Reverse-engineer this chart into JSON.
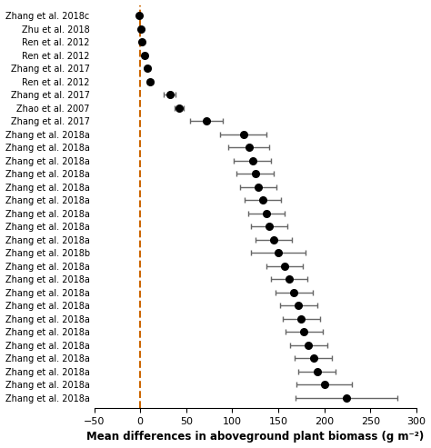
{
  "labels": [
    "Zhang et al. 2018c",
    "Zhu et al. 2018",
    "Ren et al. 2012",
    "Ren et al. 2012",
    "Zhang et al. 2017",
    "Ren et al. 2012",
    "Zhang et al. 2017",
    "Zhao et al. 2007",
    "Zhang et al. 2017",
    "Zhang et al. 2018a",
    "Zhang et al. 2018a",
    "Zhang et al. 2018a",
    "Zhang et al. 2018a",
    "Zhang et al. 2018a",
    "Zhang et al. 2018a",
    "Zhang et al. 2018a",
    "Zhang et al. 2018a",
    "Zhang et al. 2018a",
    "Zhang et al. 2018b",
    "Zhang et al. 2018a",
    "Zhang et al. 2018a",
    "Zhang et al. 2018a",
    "Zhang et al. 2018a",
    "Zhang et al. 2018a",
    "Zhang et al. 2018a",
    "Zhang et al. 2018a",
    "Zhang et al. 2018a",
    "Zhang et al. 2018a",
    "Zhang et al. 2018a",
    "Zhang et al. 2018a"
  ],
  "means": [
    -1.0,
    0.5,
    1.5,
    5.0,
    8.0,
    11.0,
    32.0,
    42.0,
    72.0,
    112.0,
    118.0,
    122.0,
    125.0,
    128.0,
    133.0,
    137.0,
    140.0,
    145.0,
    150.0,
    157.0,
    162.0,
    167.0,
    172.0,
    175.0,
    178.0,
    183.0,
    188.0,
    192.0,
    200.0,
    224.0
  ],
  "xerr_left": [
    1.0,
    1.0,
    1.0,
    2.0,
    2.5,
    3.0,
    6.0,
    5.0,
    18.0,
    25.0,
    22.0,
    20.0,
    20.0,
    20.0,
    20.0,
    20.0,
    20.0,
    20.0,
    30.0,
    20.0,
    20.0,
    20.0,
    20.0,
    20.0,
    20.0,
    20.0,
    20.0,
    20.0,
    30.0,
    55.0
  ],
  "xerr_right": [
    1.0,
    1.0,
    1.0,
    2.0,
    2.5,
    3.0,
    6.0,
    5.0,
    18.0,
    25.0,
    22.0,
    20.0,
    20.0,
    20.0,
    20.0,
    20.0,
    20.0,
    20.0,
    30.0,
    20.0,
    20.0,
    20.0,
    20.0,
    20.0,
    20.0,
    20.0,
    20.0,
    20.0,
    30.0,
    55.0
  ],
  "vline_x": 0,
  "vline_color": "#cc6600",
  "xlabel": "Mean differences in aboveground plant biomass (g m⁻²)",
  "xlim": [
    -50,
    300
  ],
  "xticks": [
    -50,
    0,
    50,
    100,
    150,
    200,
    250,
    300
  ],
  "marker_color": "black",
  "marker_size": 5.5,
  "ecolor": "#666666",
  "elinewidth": 1.0,
  "capsize": 2.5,
  "fig_width": 4.74,
  "fig_height": 4.93,
  "label_fontsize": 7.0,
  "xlabel_fontsize": 8.5
}
